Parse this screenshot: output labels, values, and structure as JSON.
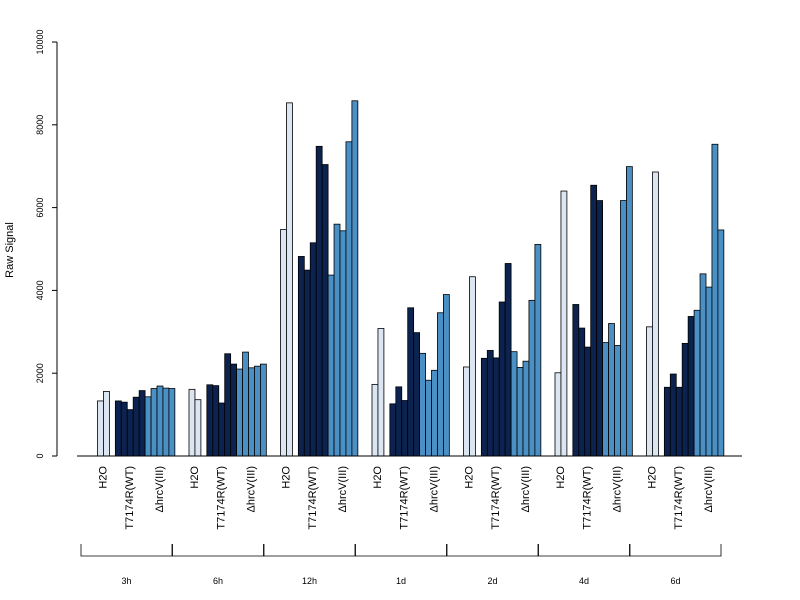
{
  "chart_data": {
    "type": "bar",
    "ylabel": "Raw Signal",
    "ylim": [
      0,
      10000
    ],
    "yticks": [
      0,
      2000,
      4000,
      6000,
      8000,
      10000
    ],
    "subcategories": [
      "H2O",
      "T7174R(WT)",
      "ΔhrcV(III)"
    ],
    "colors": {
      "H2O": "#dce6f2",
      "T7174R(WT)": "#0c2350",
      "ΔhrcV(III)": "#4a90c4"
    },
    "groups": [
      {
        "label": "3h",
        "bars": [
          {
            "category": "H2O",
            "values": [
              1330,
              1560
            ]
          },
          {
            "category": "T7174R(WT)",
            "values": [
              1330,
              1300,
              1120,
              1420,
              1580
            ]
          },
          {
            "category": "ΔhrcV(III)",
            "values": [
              1430,
              1630,
              1690,
              1640,
              1630
            ]
          }
        ]
      },
      {
        "label": "6h",
        "bars": [
          {
            "category": "H2O",
            "values": [
              1610,
              1360
            ]
          },
          {
            "category": "T7174R(WT)",
            "values": [
              1720,
              1700,
              1280,
              2470,
              2220
            ]
          },
          {
            "category": "ΔhrcV(III)",
            "values": [
              2100,
              2510,
              2130,
              2170,
              2220
            ]
          }
        ]
      },
      {
        "label": "12h",
        "bars": [
          {
            "category": "H2O",
            "values": [
              5470,
              8530
            ]
          },
          {
            "category": "T7174R(WT)",
            "values": [
              4820,
              4490,
              5150,
              7480,
              7040
            ]
          },
          {
            "category": "ΔhrcV(III)",
            "values": [
              4370,
              5600,
              5440,
              7590,
              8580
            ]
          }
        ]
      },
      {
        "label": "1d",
        "bars": [
          {
            "category": "H2O",
            "values": [
              1730,
              3080
            ]
          },
          {
            "category": "T7174R(WT)",
            "values": [
              1260,
              1670,
              1340,
              3580,
              2980
            ]
          },
          {
            "category": "ΔhrcV(III)",
            "values": [
              2480,
              1830,
              2070,
              3460,
              3900
            ]
          }
        ]
      },
      {
        "label": "2d",
        "bars": [
          {
            "category": "H2O",
            "values": [
              2150,
              4330
            ]
          },
          {
            "category": "T7174R(WT)",
            "values": [
              2360,
              2550,
              2370,
              3720,
              4650
            ]
          },
          {
            "category": "ΔhrcV(III)",
            "values": [
              2520,
              2140,
              2290,
              3760,
              5110
            ]
          }
        ]
      },
      {
        "label": "4d",
        "bars": [
          {
            "category": "H2O",
            "values": [
              2010,
              6400
            ]
          },
          {
            "category": "T7174R(WT)",
            "values": [
              3660,
              3090,
              2630,
              6540,
              6170
            ]
          },
          {
            "category": "ΔhrcV(III)",
            "values": [
              2740,
              3200,
              2670,
              6170,
              6990
            ]
          }
        ]
      },
      {
        "label": "6d",
        "bars": [
          {
            "category": "H2O",
            "values": [
              3120,
              6860
            ]
          },
          {
            "category": "T7174R(WT)",
            "values": [
              1660,
              1980,
              1660,
              2720,
              3370
            ]
          },
          {
            "category": "ΔhrcV(III)",
            "values": [
              3520,
              4400,
              4080,
              7530,
              5460
            ]
          }
        ]
      }
    ]
  }
}
